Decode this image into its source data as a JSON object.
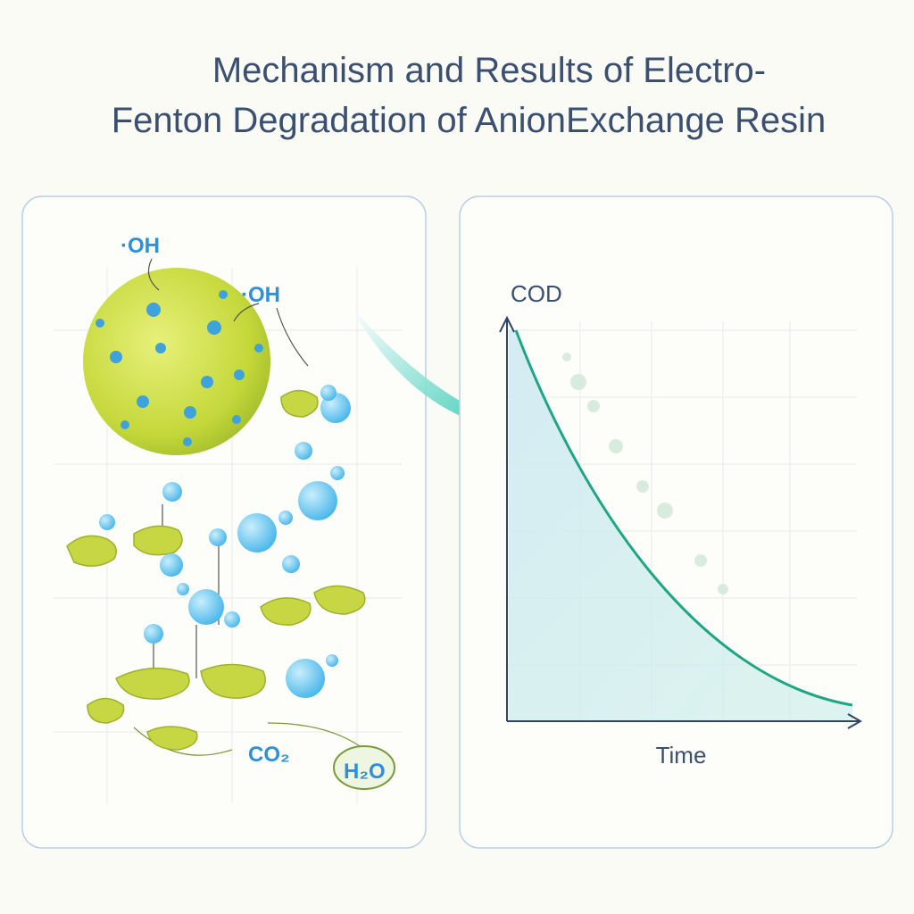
{
  "header": {
    "title_lines": [
      "Mechanism and Results of Electro-",
      "Fenton Degradation of AnionExchange Resin"
    ]
  },
  "mechanism": {
    "labels": {
      "oh_top": "·OH",
      "oh_right": "·OH",
      "co2": "CO₂",
      "h2o": "H₂O"
    }
  },
  "result_chart": {
    "y_label": "COD",
    "x_label": "Time"
  }
}
